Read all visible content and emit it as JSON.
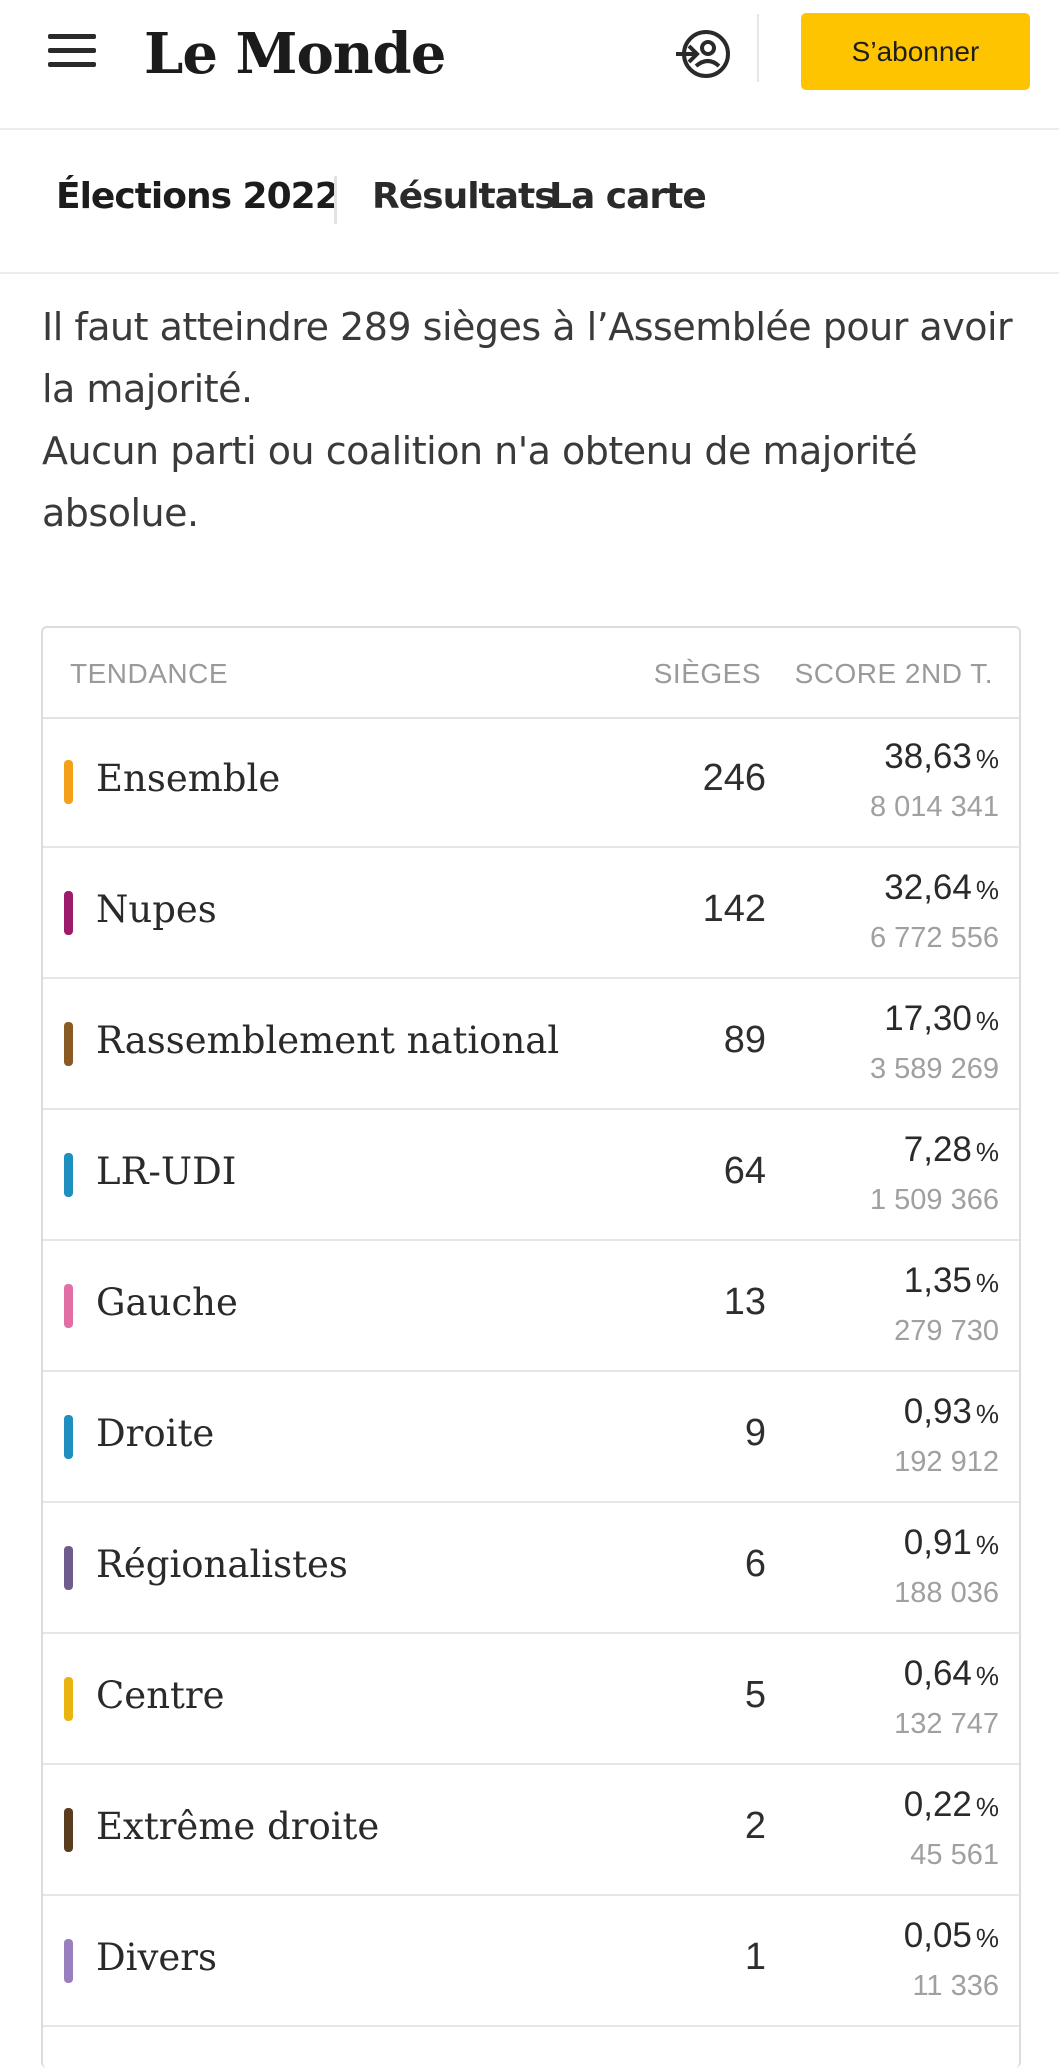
{
  "header": {
    "logo": "Le Monde",
    "subscribe_label": "S’abonner"
  },
  "subnav": {
    "section": "Élections 2022",
    "links": [
      "Résultats",
      "La carte"
    ]
  },
  "intro": {
    "line1": "Il faut atteindre 289 sièges à l’Assemblée pour avoir la majorité.",
    "line2": "Aucun parti ou coalition n'a obtenu de majorité absolue."
  },
  "table": {
    "headers": {
      "party": "TENDANCE",
      "seats": "SIÈGES",
      "score": "SCORE 2ND T."
    },
    "pct_unit": "%",
    "rows": [
      {
        "name": "Ensemble",
        "seats": "246",
        "score": "38,63",
        "votes": "8 014 341",
        "color": "#f4a01a"
      },
      {
        "name": "Nupes",
        "seats": "142",
        "score": "32,64",
        "votes": "6 772 556",
        "color": "#9c1b6b"
      },
      {
        "name": "Rassemblement national",
        "seats": "89",
        "score": "17,30",
        "votes": "3 589 269",
        "color": "#8a5a25"
      },
      {
        "name": "LR-UDI",
        "seats": "64",
        "score": "7,28",
        "votes": "1 509 366",
        "color": "#1f8fc0"
      },
      {
        "name": "Gauche",
        "seats": "13",
        "score": "1,35",
        "votes": "279 730",
        "color": "#e16fa6"
      },
      {
        "name": "Droite",
        "seats": "9",
        "score": "0,93",
        "votes": "192 912",
        "color": "#1f8fc0"
      },
      {
        "name": "Régionalistes",
        "seats": "6",
        "score": "0,91",
        "votes": "188 036",
        "color": "#6f5b8c"
      },
      {
        "name": "Centre",
        "seats": "5",
        "score": "0,64",
        "votes": "132 747",
        "color": "#e9b411"
      },
      {
        "name": "Extrême droite",
        "seats": "2",
        "score": "0,22",
        "votes": "45 561",
        "color": "#5a3d1e"
      },
      {
        "name": "Divers",
        "seats": "1",
        "score": "0,05",
        "votes": "11 336",
        "color": "#9a7fbf"
      }
    ]
  }
}
